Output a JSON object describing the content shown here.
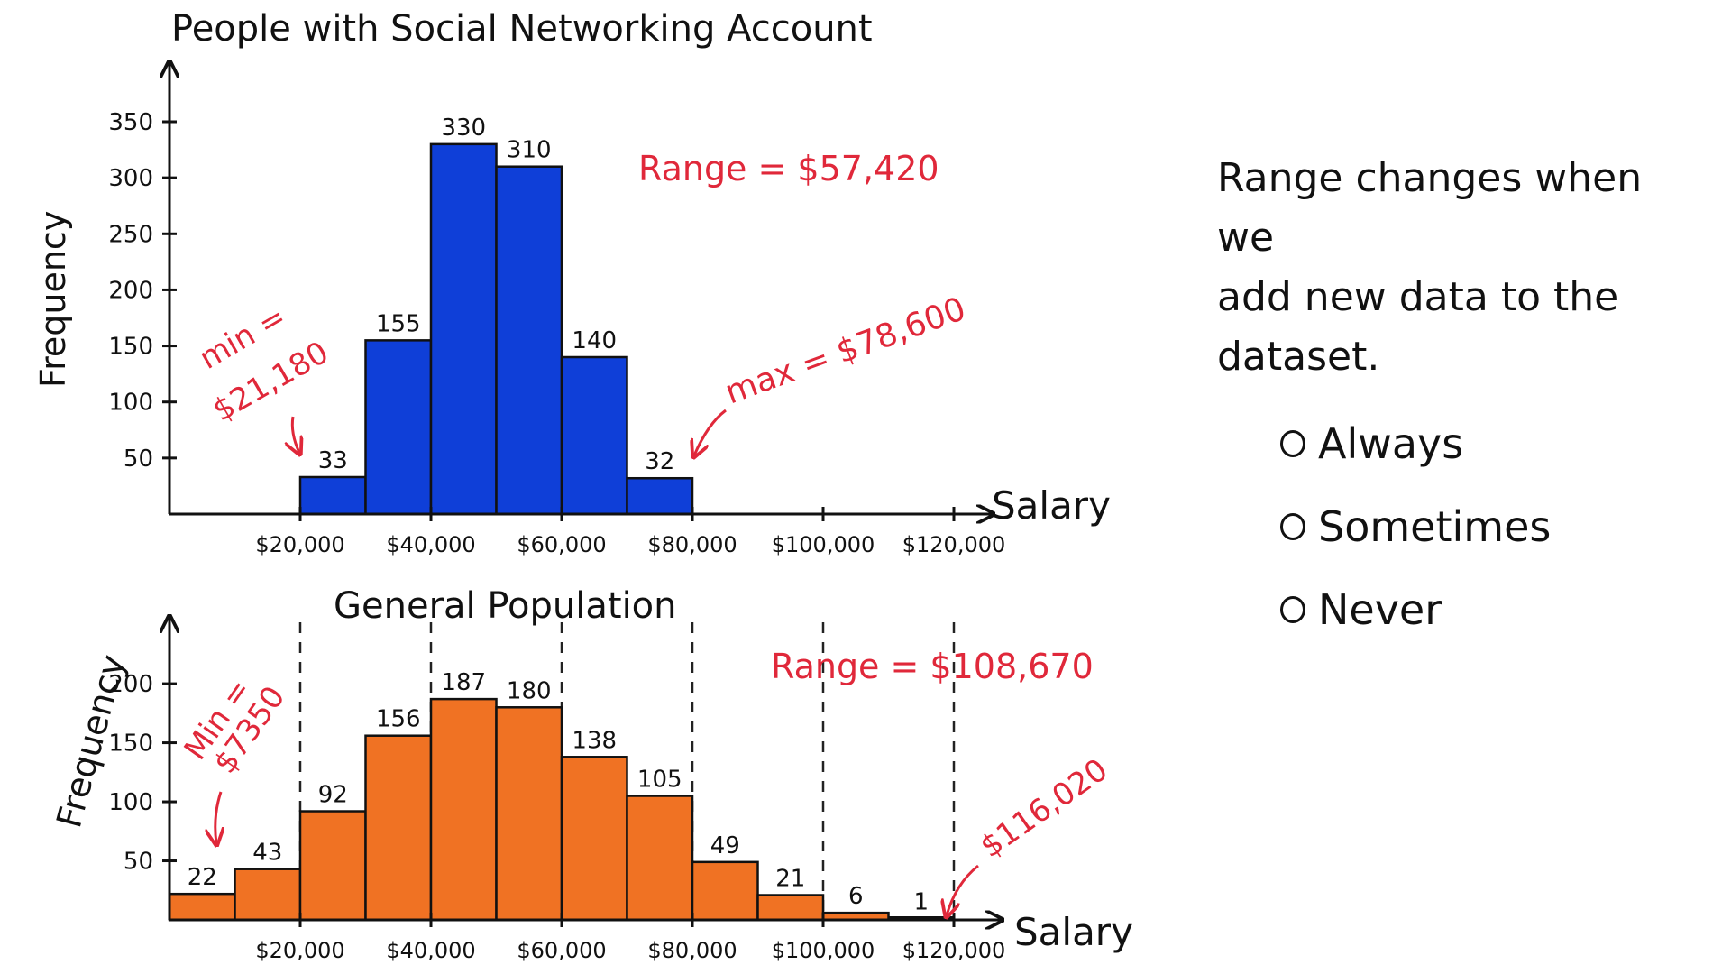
{
  "chart_data": [
    {
      "type": "bar",
      "title": "People with Social Networking Account",
      "xlabel": "Salary",
      "ylabel": "Frequency",
      "ylim": [
        0,
        350
      ],
      "yticks": [
        50,
        100,
        150,
        200,
        250,
        300,
        350
      ],
      "xlim": [
        0,
        130000
      ],
      "xticks": [
        {
          "value": 20000,
          "label": "$20,000"
        },
        {
          "value": 40000,
          "label": "$40,000"
        },
        {
          "value": 60000,
          "label": "$60,000"
        },
        {
          "value": 80000,
          "label": "$80,000"
        },
        {
          "value": 100000,
          "label": "$100,000"
        },
        {
          "value": 120000,
          "label": "$120,000"
        }
      ],
      "bin_edges": [
        20000,
        30000,
        40000,
        50000,
        60000,
        70000,
        80000
      ],
      "values": [
        33,
        155,
        330,
        310,
        140,
        32
      ],
      "bar_color": "#0f3fd8",
      "annotations": {
        "range": "Range = $57,420",
        "min_label": "min =",
        "min_value": "$21,180",
        "max": "max = $78,600"
      }
    },
    {
      "type": "bar",
      "title": "General Population",
      "xlabel": "Salary",
      "ylabel": "Frequency",
      "ylim": [
        0,
        210
      ],
      "yticks": [
        50,
        100,
        150,
        200
      ],
      "xlim": [
        0,
        130000
      ],
      "xticks": [
        {
          "value": 20000,
          "label": "$20,000"
        },
        {
          "value": 40000,
          "label": "$40,000"
        },
        {
          "value": 60000,
          "label": "$60,000"
        },
        {
          "value": 80000,
          "label": "$80,000"
        },
        {
          "value": 100000,
          "label": "$100,000"
        },
        {
          "value": 120000,
          "label": "$120,000"
        }
      ],
      "bin_edges": [
        0,
        10000,
        20000,
        30000,
        40000,
        50000,
        60000,
        70000,
        80000,
        90000,
        100000,
        110000,
        120000
      ],
      "values": [
        22,
        43,
        92,
        156,
        187,
        180,
        138,
        105,
        49,
        21,
        6,
        1
      ],
      "bar_color": "#f07223",
      "annotations": {
        "range": "Range = $108,670",
        "min_label": "Min =",
        "min_value": "$7350",
        "max": "$116,020"
      }
    }
  ],
  "question": {
    "statement": "Range changes when we\nadd new data to the\ndataset.",
    "options": [
      "Always",
      "Sometimes",
      "Never"
    ]
  },
  "colors": {
    "annotation": "#e0283a",
    "axis": "#111111"
  }
}
